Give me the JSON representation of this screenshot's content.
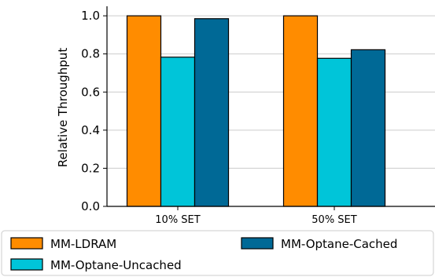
{
  "chart_data": {
    "type": "bar",
    "categories": [
      "10% SET",
      "50% SET"
    ],
    "series": [
      {
        "name": "MM-LDRAM",
        "values": [
          1.0,
          1.0
        ],
        "color": "#ff8c00"
      },
      {
        "name": "MM-Optane-Uncached",
        "values": [
          0.783,
          0.777
        ],
        "color": "#00c5d9"
      },
      {
        "name": "MM-Optane-Cached",
        "values": [
          0.985,
          0.822
        ],
        "color": "#006996"
      }
    ],
    "ylabel": "Relative Throughput",
    "ylim": [
      0,
      1.05
    ],
    "yticks": [
      "0.0",
      "0.2",
      "0.4",
      "0.6",
      "0.8",
      "1.0"
    ],
    "grid": "horizontal",
    "legend_position": "bottom"
  }
}
